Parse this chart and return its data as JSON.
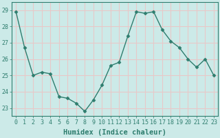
{
  "x": [
    0,
    1,
    2,
    3,
    4,
    5,
    6,
    7,
    8,
    9,
    10,
    11,
    12,
    13,
    14,
    15,
    16,
    17,
    18,
    19,
    20,
    21,
    22,
    23
  ],
  "y": [
    28.9,
    26.7,
    25.0,
    25.2,
    25.1,
    23.7,
    23.6,
    23.3,
    22.8,
    23.5,
    24.4,
    25.6,
    25.8,
    27.4,
    28.9,
    28.8,
    28.9,
    27.8,
    27.1,
    26.7,
    26.0,
    25.5,
    26.0,
    25.0
  ],
  "line_color": "#2e7d6e",
  "marker": "D",
  "markersize": 2.5,
  "linewidth": 1.0,
  "bg_color": "#cceae8",
  "grid_color": "#e8c8c8",
  "xlabel": "Humidex (Indice chaleur)",
  "xlabel_fontsize": 7.5,
  "tick_color": "#2e7d6e",
  "tick_fontsize": 6,
  "ylim": [
    22.5,
    29.5
  ],
  "yticks": [
    23,
    24,
    25,
    26,
    27,
    28,
    29
  ],
  "xlim": [
    -0.5,
    23.5
  ],
  "xticks": [
    0,
    1,
    2,
    3,
    4,
    5,
    6,
    7,
    8,
    9,
    10,
    11,
    12,
    13,
    14,
    15,
    16,
    17,
    18,
    19,
    20,
    21,
    22,
    23
  ]
}
